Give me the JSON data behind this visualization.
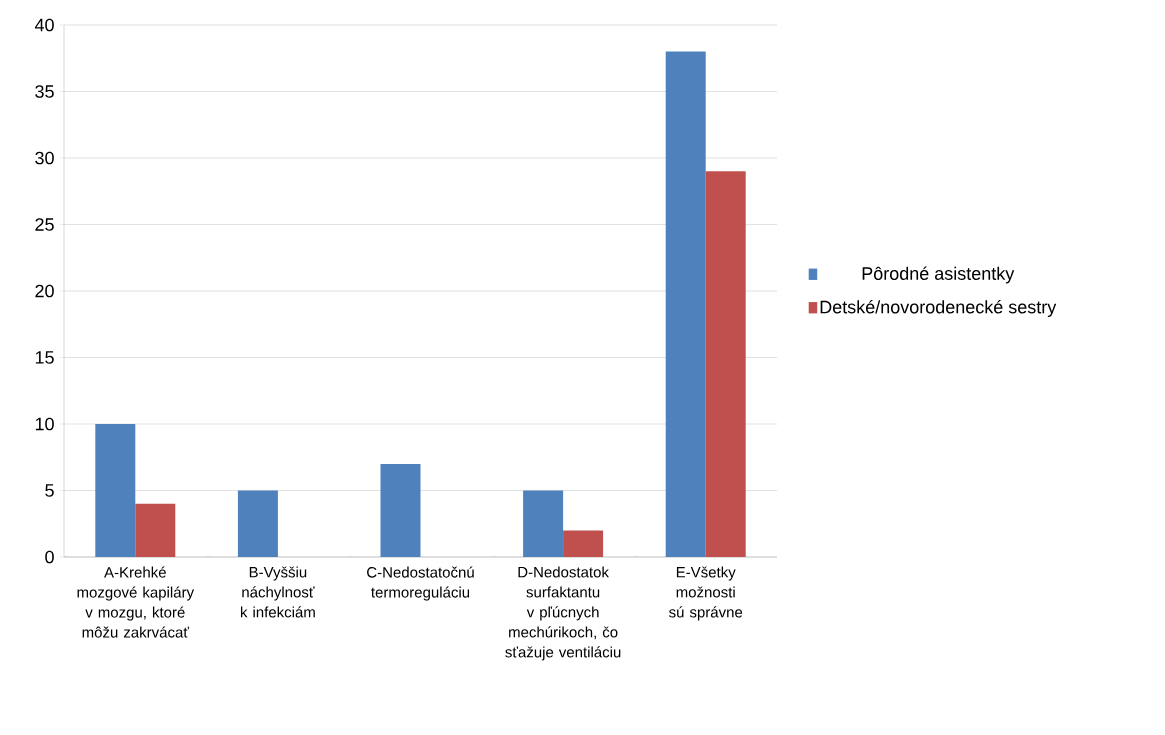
{
  "chart_data": {
    "type": "bar",
    "categories": [
      "A-Krehké mozgové kapiláry v mozgu, ktoré môžu zakrvácať",
      "B-Vyššiu náchylnosť k infekciám",
      "C-Nedostatočnú termoreguláciu",
      "D-Nedostatok surfaktantu v pľúcnych mechúrikoch, čo sťažuje ventiláciu",
      "E-Všetky možnosti sú správne"
    ],
    "series": [
      {
        "name": "Pôrodné asistentky",
        "color": "#4f81bd",
        "values": [
          10,
          5,
          7,
          5,
          38
        ]
      },
      {
        "name": "Detské/novorodenecké sestry",
        "color": "#c0504d",
        "values": [
          4,
          0,
          0,
          2,
          29
        ]
      }
    ],
    "ylim": [
      0,
      40
    ],
    "yticks": [
      0,
      5,
      10,
      15,
      20,
      25,
      30,
      35,
      40
    ],
    "grid": "y",
    "legend": "right"
  }
}
